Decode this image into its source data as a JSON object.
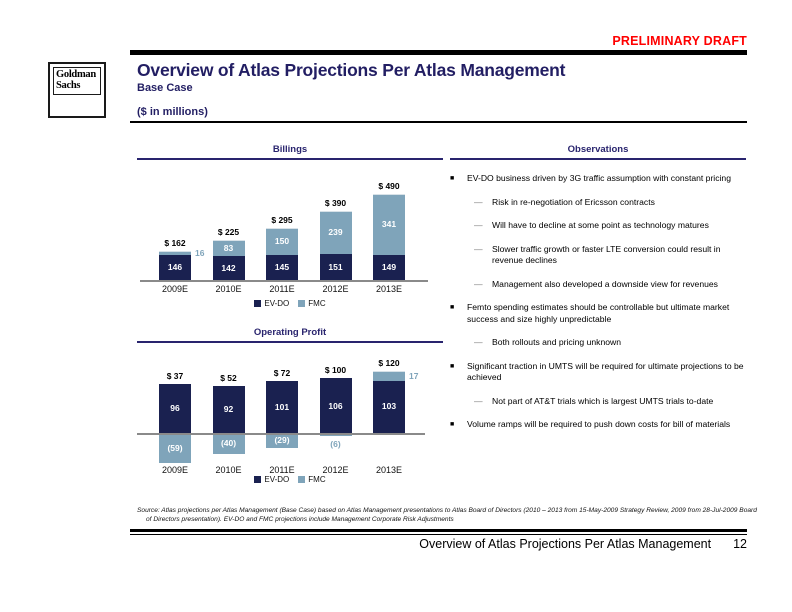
{
  "header": {
    "draft_label": "PRELIMINARY DRAFT",
    "title": "Overview of Atlas Projections Per Atlas Management",
    "subtitle": "Base Case",
    "units_label": "($ in millions)"
  },
  "logo": {
    "line1": "Goldman",
    "line2": "Sachs"
  },
  "colors": {
    "accent_navy": "#221e63",
    "heading_navy": "#29246e",
    "evdo_bar": "#1a2150",
    "fmc_bar": "#7fa4ba",
    "draft_red": "#ff0000",
    "axis_gray": "#8a8a8a"
  },
  "chart_data": [
    {
      "id": "billings",
      "type": "stacked-bar",
      "title": "Billings",
      "categories": [
        "2009E",
        "2010E",
        "2011E",
        "2012E",
        "2013E"
      ],
      "series": [
        {
          "name": "EV-DO",
          "color": "#1a2150",
          "values": [
            146,
            142,
            145,
            151,
            149
          ],
          "labels": [
            {
              "text": "146",
              "placement": "inside"
            },
            {
              "text": "142",
              "placement": "inside"
            },
            {
              "text": "145",
              "placement": "inside"
            },
            {
              "text": "151",
              "placement": "inside"
            },
            {
              "text": "149",
              "placement": "inside"
            }
          ]
        },
        {
          "name": "FMC",
          "color": "#7fa4ba",
          "values": [
            16,
            83,
            150,
            239,
            341
          ],
          "labels": [
            {
              "text": "16",
              "placement": "right"
            },
            {
              "text": "83",
              "placement": "inside"
            },
            {
              "text": "150",
              "placement": "inside"
            },
            {
              "text": "239",
              "placement": "inside"
            },
            {
              "text": "341",
              "placement": "inside"
            }
          ]
        }
      ],
      "totals": [
        "$ 162",
        "$ 225",
        "$ 295",
        "$ 390",
        "$ 490"
      ],
      "legend": [
        "EV-DO",
        "FMC"
      ],
      "legend_position": "bottom",
      "grid": false
    },
    {
      "id": "operating-profit",
      "type": "stacked-bar",
      "title": "Operating Profit",
      "categories": [
        "2009E",
        "2010E",
        "2011E",
        "2012E",
        "2013E"
      ],
      "series": [
        {
          "name": "EV-DO",
          "color": "#1a2150",
          "values": [
            96,
            92,
            101,
            106,
            103
          ],
          "labels": [
            {
              "text": "96",
              "placement": "inside"
            },
            {
              "text": "92",
              "placement": "inside"
            },
            {
              "text": "101",
              "placement": "inside"
            },
            {
              "text": "106",
              "placement": "inside"
            },
            {
              "text": "103",
              "placement": "inside"
            }
          ]
        },
        {
          "name": "FMC",
          "color": "#7fa4ba",
          "values": [
            -59,
            -40,
            -29,
            -6,
            17
          ],
          "labels": [
            {
              "text": "(59)",
              "placement": "inside"
            },
            {
              "text": "(40)",
              "placement": "inside"
            },
            {
              "text": "(29)",
              "placement": "inside"
            },
            {
              "text": "(6)",
              "placement": "below"
            },
            {
              "text": "17",
              "placement": "right"
            }
          ]
        }
      ],
      "totals": [
        "$ 37",
        "$ 52",
        "$ 72",
        "$ 100",
        "$ 120"
      ],
      "legend": [
        "EV-DO",
        "FMC"
      ],
      "legend_position": "bottom",
      "grid": false
    }
  ],
  "observations": {
    "title": "Observations",
    "bullet_glyphs": {
      "level1": "■",
      "level2": "—"
    },
    "items": [
      {
        "level": 1,
        "text": "EV-DO business driven by 3G traffic assumption with constant pricing"
      },
      {
        "level": 2,
        "text": "Risk in re-negotiation of Ericsson contracts"
      },
      {
        "level": 2,
        "text": "Will have to decline at some point as technology matures"
      },
      {
        "level": 2,
        "text": "Slower traffic growth or faster LTE conversion could result in revenue declines"
      },
      {
        "level": 2,
        "text": "Management also developed a downside view for revenues"
      },
      {
        "level": 1,
        "text": "Femto spending estimates should be controllable but ultimate market success and size highly unpredictable"
      },
      {
        "level": 2,
        "text": "Both rollouts and pricing unknown"
      },
      {
        "level": 1,
        "text": "Significant traction in UMTS will be required for ultimate projections to be achieved"
      },
      {
        "level": 2,
        "text": "Not part of AT&T trials which is largest UMTS trials to-date"
      },
      {
        "level": 1,
        "text": "Volume ramps will be required to push down costs for bill of materials"
      }
    ]
  },
  "footer": {
    "source": "Source: Atlas projections per Atlas Management (Base Case) based on Atlas Management presentations to Atlas Board of Directors (2010 – 2013 from 15-May-2009 Strategy Review, 2009 from 28-Jul-2009 Board of Directors presentation). EV-DO and FMC projections include Management Corporate Risk Adjustments",
    "title": "Overview of Atlas Projections Per Atlas Management",
    "page_number": "12"
  }
}
